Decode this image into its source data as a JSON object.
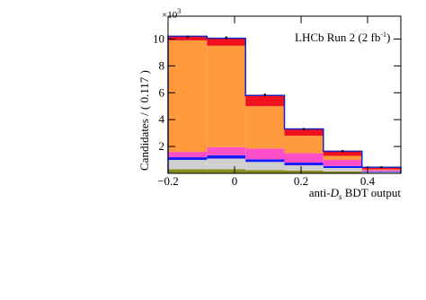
{
  "chart_data": {
    "type": "stacked-histogram",
    "y_label": "Candidates / ( 0.117 )",
    "y_scale_parts": [
      "×10",
      "3"
    ],
    "x_label_parts": [
      "anti-",
      "D",
      "s",
      " BDT output"
    ],
    "legend_parts": [
      "LHCb Run 2 (2 fb",
      "-1",
      ")"
    ],
    "bins": [
      -0.2,
      -0.083,
      0.033,
      0.15,
      0.267,
      0.383,
      0.5
    ],
    "series": [
      {
        "color": "#8b8b1a",
        "values": [
          0.3,
          0.3,
          0.25,
          0.2,
          0.15,
          0.05
        ]
      },
      {
        "color": "#cfcfcf",
        "values": [
          0.7,
          0.8,
          0.6,
          0.4,
          0.25,
          0.05
        ]
      },
      {
        "color": "#1a1aff",
        "values": [
          0.2,
          0.25,
          0.2,
          0.2,
          0.15,
          0.05
        ]
      },
      {
        "color": "#ff4fc8",
        "values": [
          0.4,
          0.6,
          0.8,
          0.7,
          0.45,
          0.1
        ]
      },
      {
        "color": "#ff9a3c",
        "values": [
          8.3,
          7.55,
          3.15,
          1.3,
          0.3,
          0.05
        ]
      },
      {
        "color": "#f0101e",
        "values": [
          0.3,
          0.55,
          0.8,
          0.5,
          0.35,
          0.15
        ]
      }
    ],
    "outline_color": "#2020c0",
    "data_points": {
      "values": [
        10.15,
        10.1,
        5.85,
        3.3,
        1.65,
        0.45
      ],
      "errors": [
        0.1,
        0.1,
        0.08,
        0.06,
        0.04,
        0.02
      ]
    },
    "xlim": [
      -0.2,
      0.5
    ],
    "ylim": [
      0,
      11.7
    ],
    "xticks": [
      {
        "value": -0.2,
        "label": "−0.2"
      },
      0,
      0.2,
      0.4
    ],
    "yticks": [
      2,
      4,
      6,
      8,
      10
    ]
  }
}
